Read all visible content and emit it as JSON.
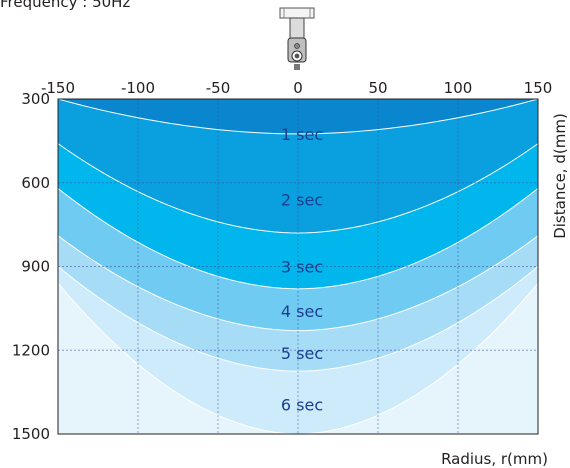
{
  "page": {
    "title": "Frequency : 50Hz"
  },
  "icons": {
    "sensor": "ceiling-sensor-icon"
  },
  "chart_data": {
    "type": "area",
    "title": "Frequency : 50Hz",
    "xlabel": "Radius, r(mm)",
    "ylabel": "Distance, d(mm)",
    "xlim": [
      -150,
      150
    ],
    "ylim": [
      300,
      1500
    ],
    "y_inverted": true,
    "x_ticks": [
      "-150",
      "-100",
      "-50",
      "0",
      "50",
      "100",
      "150"
    ],
    "y_ticks": [
      "300",
      "600",
      "900",
      "1200",
      "1500"
    ],
    "x_tick_values": [
      -150,
      -100,
      -50,
      0,
      50,
      100,
      150
    ],
    "y_tick_values": [
      300,
      600,
      900,
      1200,
      1500
    ],
    "grid": true,
    "zones": [
      {
        "label": "1 sec",
        "color": "#0a86cf",
        "center_d": 425,
        "edge_d": 300
      },
      {
        "label": "2 sec",
        "color": "#0aa0e0",
        "center_d": 780,
        "edge_d": 460
      },
      {
        "label": "3 sec",
        "color": "#00b6ec",
        "center_d": 980,
        "edge_d": 620
      },
      {
        "label": "4 sec",
        "color": "#6fcbf2",
        "center_d": 1130,
        "edge_d": 790
      },
      {
        "label": "5 sec",
        "color": "#a6dcf6",
        "center_d": 1275,
        "edge_d": 900
      },
      {
        "label": "6 sec",
        "color": "#cdebfa",
        "center_d": 1500,
        "edge_d": 960
      }
    ],
    "background_color": "#e6f4fb",
    "zone_label_d": [
      425,
      660,
      900,
      1060,
      1210,
      1395
    ]
  }
}
